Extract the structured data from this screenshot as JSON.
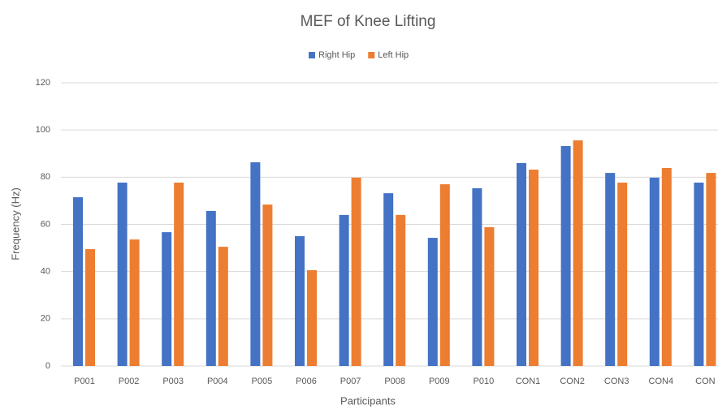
{
  "chart_data": {
    "type": "bar",
    "title": "MEF of Knee Lifting",
    "x_label": "Participants",
    "y_label": "Frequency (Hz)",
    "categories": [
      "P001",
      "P002",
      "P003",
      "P004",
      "P005",
      "P006",
      "P007",
      "P008",
      "P009",
      "P010",
      "CON1",
      "CON2",
      "CON3",
      "CON4",
      "CON"
    ],
    "series": [
      {
        "name": "Right Hip",
        "color": "#4472c4",
        "values": [
          71.5,
          77.7,
          56.7,
          65.7,
          86.3,
          55,
          64,
          73.2,
          54.3,
          75.3,
          86,
          93.2,
          81.8,
          79.8,
          77.7
        ]
      },
      {
        "name": "Left Hip",
        "color": "#ed7d31",
        "values": [
          49.5,
          53.6,
          77.7,
          50.5,
          68.4,
          40.6,
          79.8,
          64,
          77,
          58.8,
          83.2,
          95.6,
          77.7,
          83.9,
          81.8
        ]
      }
    ],
    "ylim": [
      0,
      120
    ],
    "yticks": [
      0,
      20,
      40,
      60,
      80,
      100,
      120
    ],
    "grid": true,
    "legend": "top"
  }
}
